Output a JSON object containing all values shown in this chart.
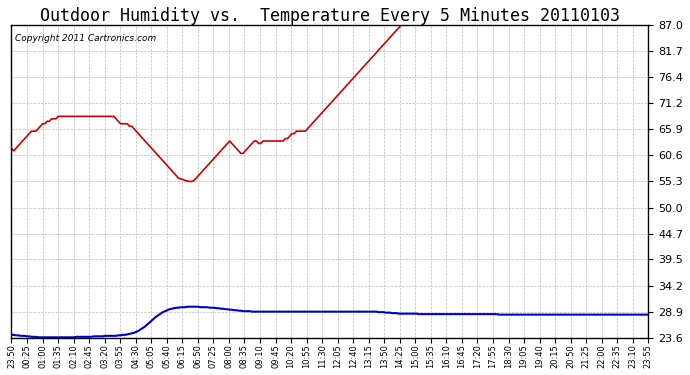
{
  "title": "Outdoor Humidity vs.  Temperature Every 5 Minutes 20110103",
  "copyright_text": "Copyright 2011 Cartronics.com",
  "yticks": [
    23.6,
    28.9,
    34.2,
    39.5,
    44.7,
    50.0,
    55.3,
    60.6,
    65.9,
    71.2,
    76.4,
    81.7,
    87.0
  ],
  "ymin": 23.6,
  "ymax": 87.0,
  "xtick_labels": [
    "23:50",
    "00:25",
    "01:00",
    "01:35",
    "02:10",
    "02:45",
    "03:20",
    "03:55",
    "04:30",
    "05:05",
    "05:40",
    "06:15",
    "06:50",
    "07:25",
    "08:00",
    "08:35",
    "09:10",
    "09:45",
    "10:20",
    "10:55",
    "11:30",
    "12:05",
    "12:40",
    "13:15",
    "13:50",
    "14:25",
    "15:00",
    "15:35",
    "16:10",
    "16:45",
    "17:20",
    "17:55",
    "18:30",
    "19:05",
    "19:40",
    "20:15",
    "20:50",
    "21:25",
    "22:00",
    "22:35",
    "23:10",
    "23:55"
  ],
  "humidity_color": "#cc0000",
  "temperature_color": "#0000cc",
  "background_color": "#ffffff",
  "grid_color": "#aaaaaa",
  "title_fontsize": 12,
  "humidity_data": [
    62.0,
    61.5,
    62.0,
    62.5,
    63.0,
    63.5,
    64.0,
    64.5,
    65.0,
    65.5,
    65.5,
    65.5,
    66.0,
    66.5,
    67.0,
    67.0,
    67.5,
    67.5,
    68.0,
    68.0,
    68.0,
    68.5,
    68.5,
    68.5,
    68.5,
    68.5,
    68.5,
    68.5,
    68.5,
    68.5,
    68.5,
    68.5,
    68.5,
    68.5,
    68.5,
    68.5,
    68.5,
    68.5,
    68.5,
    68.5,
    68.5,
    68.5,
    68.5,
    68.5,
    68.5,
    68.5,
    68.5,
    68.0,
    67.5,
    67.0,
    67.0,
    67.0,
    67.0,
    66.5,
    66.5,
    66.0,
    65.5,
    65.0,
    64.5,
    64.0,
    63.5,
    63.0,
    62.5,
    62.0,
    61.5,
    61.0,
    60.5,
    60.0,
    59.5,
    59.0,
    58.5,
    58.0,
    57.5,
    57.0,
    56.5,
    56.0,
    55.8,
    55.7,
    55.5,
    55.4,
    55.3,
    55.3,
    55.5,
    56.0,
    56.5,
    57.0,
    57.5,
    58.0,
    58.5,
    59.0,
    59.5,
    60.0,
    60.5,
    61.0,
    61.5,
    62.0,
    62.5,
    63.0,
    63.5,
    63.0,
    62.5,
    62.0,
    61.5,
    61.0,
    61.0,
    61.5,
    62.0,
    62.5,
    63.0,
    63.5,
    63.5,
    63.0,
    63.0,
    63.5,
    63.5,
    63.5,
    63.5,
    63.5,
    63.5,
    63.5,
    63.5,
    63.5,
    63.5,
    64.0,
    64.0,
    64.5,
    65.0,
    65.0,
    65.5,
    65.5,
    65.5,
    65.5,
    65.5,
    66.0,
    66.5,
    67.0,
    67.5,
    68.0,
    68.5,
    69.0,
    69.5,
    70.0,
    70.5,
    71.0,
    71.5,
    72.0,
    72.5,
    73.0,
    73.5,
    74.0,
    74.5,
    75.0,
    75.5,
    76.0,
    76.5,
    77.0,
    77.5,
    78.0,
    78.5,
    79.0,
    79.5,
    80.0,
    80.5,
    81.0,
    81.5,
    82.0,
    82.5,
    83.0,
    83.5,
    84.0,
    84.5,
    85.0,
    85.5,
    86.0,
    86.5,
    87.0,
    87.0,
    87.0,
    87.0,
    87.0,
    87.0,
    87.0,
    87.0,
    87.0,
    87.0,
    87.0,
    87.0,
    87.0,
    87.0,
    87.0,
    87.0,
    87.0,
    87.0,
    87.0,
    87.0,
    87.0,
    87.0,
    87.0,
    87.0,
    87.0,
    87.0,
    87.0,
    87.0,
    87.0,
    87.0,
    87.0,
    87.0,
    87.0,
    87.0,
    87.0,
    87.0,
    87.0,
    87.0,
    87.0,
    87.0,
    87.0,
    87.0,
    87.0,
    87.0,
    87.0,
    87.0,
    87.0,
    87.0,
    87.0,
    87.0,
    87.0,
    87.0,
    87.0,
    87.0,
    87.0,
    87.0,
    87.0,
    87.0,
    87.0,
    87.0,
    87.0,
    87.0,
    87.0,
    87.0,
    87.0,
    87.0,
    87.0,
    87.0,
    87.0,
    87.0,
    87.0,
    87.0,
    87.0,
    87.0,
    87.0,
    87.0,
    87.0,
    87.0,
    87.0,
    87.0,
    87.0,
    87.0,
    87.0,
    87.0,
    87.0,
    87.0,
    87.0,
    87.0,
    87.0,
    87.0,
    87.0,
    87.0,
    87.0,
    87.0,
    87.0,
    87.0,
    87.0,
    87.0,
    87.0,
    87.0,
    87.0,
    87.0,
    87.0,
    87.0,
    87.0,
    87.0,
    87.0,
    87.0,
    87.0,
    87.0,
    87.0,
    87.0
  ],
  "temperature_data": [
    24.2,
    24.2,
    24.1,
    24.1,
    24.0,
    24.0,
    24.0,
    23.9,
    23.9,
    23.8,
    23.8,
    23.8,
    23.7,
    23.7,
    23.7,
    23.7,
    23.7,
    23.7,
    23.7,
    23.7,
    23.7,
    23.7,
    23.7,
    23.7,
    23.7,
    23.7,
    23.7,
    23.7,
    23.7,
    23.8,
    23.8,
    23.8,
    23.8,
    23.8,
    23.8,
    23.8,
    23.8,
    23.9,
    23.9,
    23.9,
    23.9,
    23.9,
    24.0,
    24.0,
    24.0,
    24.0,
    24.0,
    24.0,
    24.1,
    24.1,
    24.2,
    24.2,
    24.3,
    24.4,
    24.5,
    24.6,
    24.8,
    25.0,
    25.3,
    25.6,
    25.9,
    26.3,
    26.7,
    27.1,
    27.5,
    27.9,
    28.2,
    28.5,
    28.8,
    29.0,
    29.2,
    29.4,
    29.5,
    29.6,
    29.7,
    29.7,
    29.8,
    29.8,
    29.8,
    29.9,
    29.9,
    29.9,
    29.9,
    29.9,
    29.9,
    29.8,
    29.8,
    29.8,
    29.8,
    29.7,
    29.7,
    29.7,
    29.6,
    29.6,
    29.5,
    29.5,
    29.4,
    29.4,
    29.3,
    29.3,
    29.2,
    29.2,
    29.1,
    29.1,
    29.0,
    29.0,
    29.0,
    29.0,
    28.9,
    28.9,
    28.9,
    28.9,
    28.9,
    28.9,
    28.9,
    28.9,
    28.9,
    28.9,
    28.9,
    28.9,
    28.9,
    28.9,
    28.9,
    28.9,
    28.9,
    28.9,
    28.9,
    28.9,
    28.9,
    28.9,
    28.9,
    28.9,
    28.9,
    28.9,
    28.9,
    28.9,
    28.9,
    28.9,
    28.9,
    28.9,
    28.9,
    28.9,
    28.9,
    28.9,
    28.9,
    28.9,
    28.9,
    28.9,
    28.9,
    28.9,
    28.9,
    28.9,
    28.9,
    28.9,
    28.9,
    28.9,
    28.9,
    28.9,
    28.9,
    28.9,
    28.9,
    28.9,
    28.9,
    28.9,
    28.9,
    28.8,
    28.8,
    28.8,
    28.7,
    28.7,
    28.7,
    28.6,
    28.6,
    28.6,
    28.5,
    28.5,
    28.5,
    28.5,
    28.5,
    28.5,
    28.5,
    28.5,
    28.5,
    28.4,
    28.4,
    28.4,
    28.4,
    28.4,
    28.4,
    28.4,
    28.4,
    28.4,
    28.4,
    28.4,
    28.4,
    28.4,
    28.4,
    28.4,
    28.4,
    28.4,
    28.4,
    28.4,
    28.4,
    28.4,
    28.4,
    28.4,
    28.4,
    28.4,
    28.4,
    28.4,
    28.4,
    28.4,
    28.4,
    28.4,
    28.4,
    28.4,
    28.4,
    28.4,
    28.4,
    28.3,
    28.3,
    28.3,
    28.3,
    28.3,
    28.3,
    28.3,
    28.3,
    28.3,
    28.3,
    28.3,
    28.3,
    28.3,
    28.3,
    28.3,
    28.3,
    28.3,
    28.3,
    28.3,
    28.3,
    28.3,
    28.3,
    28.3,
    28.3,
    28.3,
    28.3,
    28.3,
    28.3,
    28.3,
    28.3,
    28.3,
    28.3,
    28.3,
    28.3,
    28.3,
    28.3,
    28.3,
    28.3,
    28.3,
    28.3,
    28.3,
    28.3,
    28.3,
    28.3,
    28.3,
    28.3,
    28.3,
    28.3,
    28.3,
    28.3,
    28.3,
    28.3,
    28.3,
    28.3,
    28.3,
    28.3,
    28.3,
    28.3,
    28.3,
    28.3,
    28.3,
    28.3,
    28.3,
    28.3,
    28.3,
    28.3,
    28.3,
    28.3
  ]
}
